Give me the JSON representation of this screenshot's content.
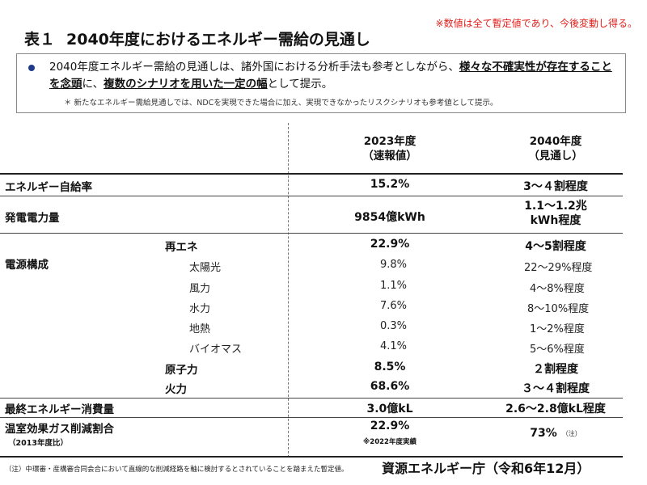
{
  "notice": "※数値は全て暫定値であり、今後変動し得る。",
  "title": {
    "prefix": "表１",
    "text": "2040年度におけるエネルギー需給の見通し"
  },
  "summary": {
    "part1": "2040年度エネルギー需給の見通しは、諸外国における分析手法も参考としながら、",
    "emphasis1": "様々な不確実性が存在することを念頭",
    "part2": "に、",
    "emphasis2": "複数のシナリオを用いた一定の幅",
    "part3": "として提示。",
    "note": "＊ 新たなエネルギー需給見通しでは、NDCを実現できた場合に加え、実現できなかったリスクシナリオも参考値として提示。"
  },
  "table": {
    "col_2023": {
      "line1": "2023年度",
      "line2": "（速報値）"
    },
    "col_2040": {
      "line1": "2040年度",
      "line2": "（見通し）"
    },
    "self_sufficiency": {
      "label": "エネルギー自給率",
      "v2023": "15.2%",
      "v2040": "3～４割程度"
    },
    "generation": {
      "label": "発電電力量",
      "v2023": "9854億kWh",
      "v2040_line1": "1.1～1.2兆",
      "v2040_line2": "kWh程度"
    },
    "power_mix": {
      "label": "電源構成",
      "renewables": {
        "label": "再エネ",
        "v2023": "22.9%",
        "v2040": "4～5割程度"
      },
      "solar": {
        "label": "太陽光",
        "v2023": "9.8%",
        "v2040": "22～29%程度"
      },
      "wind": {
        "label": "風力",
        "v2023": "1.1%",
        "v2040": "4～8%程度"
      },
      "hydro": {
        "label": "水力",
        "v2023": "7.6%",
        "v2040": "8～10%程度"
      },
      "geothermal": {
        "label": "地熱",
        "v2023": "0.3%",
        "v2040": "1～2%程度"
      },
      "biomass": {
        "label": "バイオマス",
        "v2023": "4.1%",
        "v2040": "5～6%程度"
      },
      "nuclear": {
        "label": "原子力",
        "v2023": "8.5%",
        "v2040": "２割程度"
      },
      "thermal": {
        "label": "火力",
        "v2023": "68.6%",
        "v2040": "３～４割程度"
      }
    },
    "final_consumption": {
      "label": "最終エネルギー消費量",
      "v2023": "3.0億kL",
      "v2040": "2.6～2.8億kL程度"
    },
    "ghg": {
      "label": "温室効果ガス削減割合",
      "sublabel": "（2013年度比）",
      "v2023": "22.9%",
      "v2023_note": "※2022年度実績",
      "v2040": "73%",
      "v2040_note": "（注）"
    }
  },
  "footnote": "（注）中環審・産構審合同会合において直線的な削減経路を軸に検討するとされていることを踏まえた暫定値。",
  "agency": "資源エネルギー庁（令和6年12月）"
}
